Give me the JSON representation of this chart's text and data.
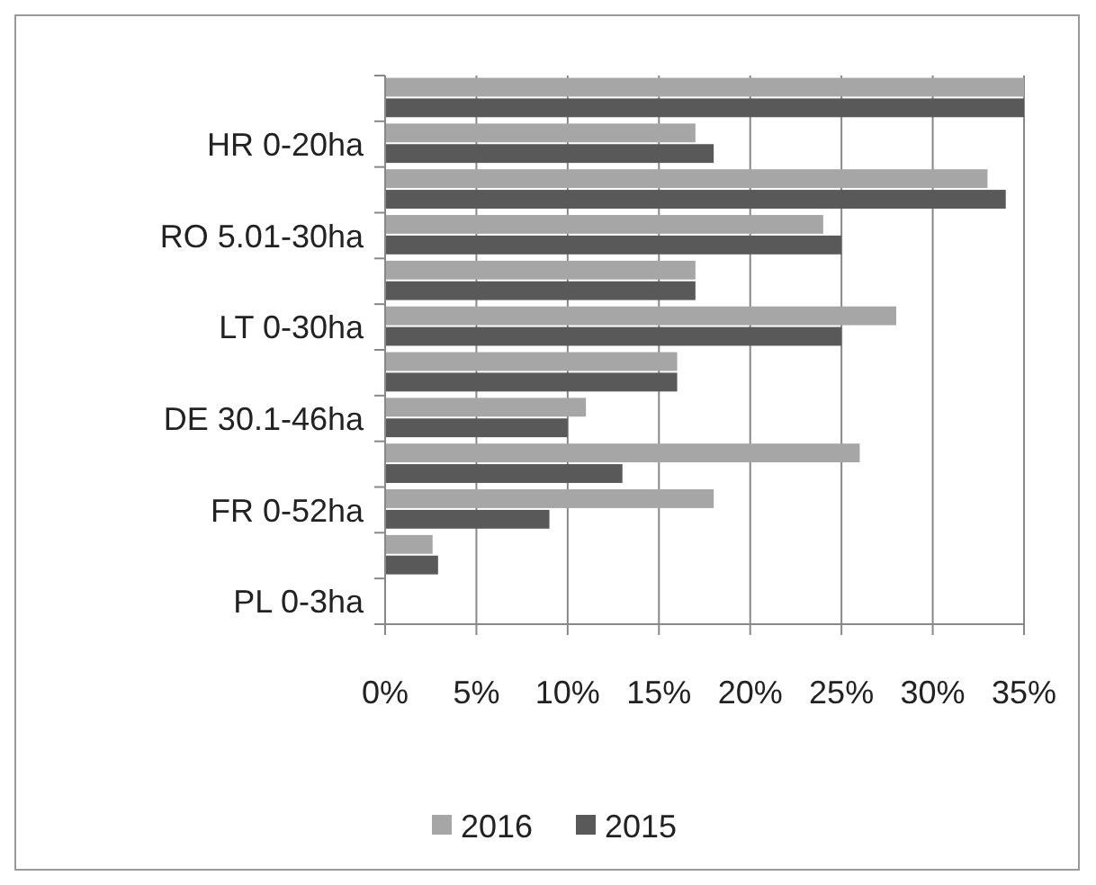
{
  "chart_data": {
    "type": "bar",
    "orientation": "horizontal",
    "categories": [
      null,
      "HR 0-20ha",
      null,
      "RO 5.01-30ha",
      null,
      "LT 0-30ha",
      null,
      "DE 30.1-46ha",
      null,
      "FR 0-52ha",
      null,
      "PL 0-3ha"
    ],
    "series": [
      {
        "name": "2016",
        "color": "#a6a6a6",
        "values": [
          35,
          17,
          33,
          24,
          17,
          28,
          16,
          11,
          26,
          18,
          2.6,
          null
        ]
      },
      {
        "name": "2015",
        "color": "#595959",
        "values": [
          35,
          18,
          34,
          25,
          17,
          25,
          16,
          10,
          13,
          9,
          2.9,
          null
        ]
      }
    ],
    "xlim": [
      0,
      35
    ],
    "xticks": [
      {
        "value": 0,
        "label": "0%"
      },
      {
        "value": 5,
        "label": "5%"
      },
      {
        "value": 10,
        "label": "10%"
      },
      {
        "value": 15,
        "label": "15%"
      },
      {
        "value": 20,
        "label": "20%"
      },
      {
        "value": 25,
        "label": "25%"
      },
      {
        "value": 30,
        "label": "30%"
      },
      {
        "value": 35,
        "label": "35%"
      }
    ],
    "grid": "x",
    "legend": "bottom"
  }
}
